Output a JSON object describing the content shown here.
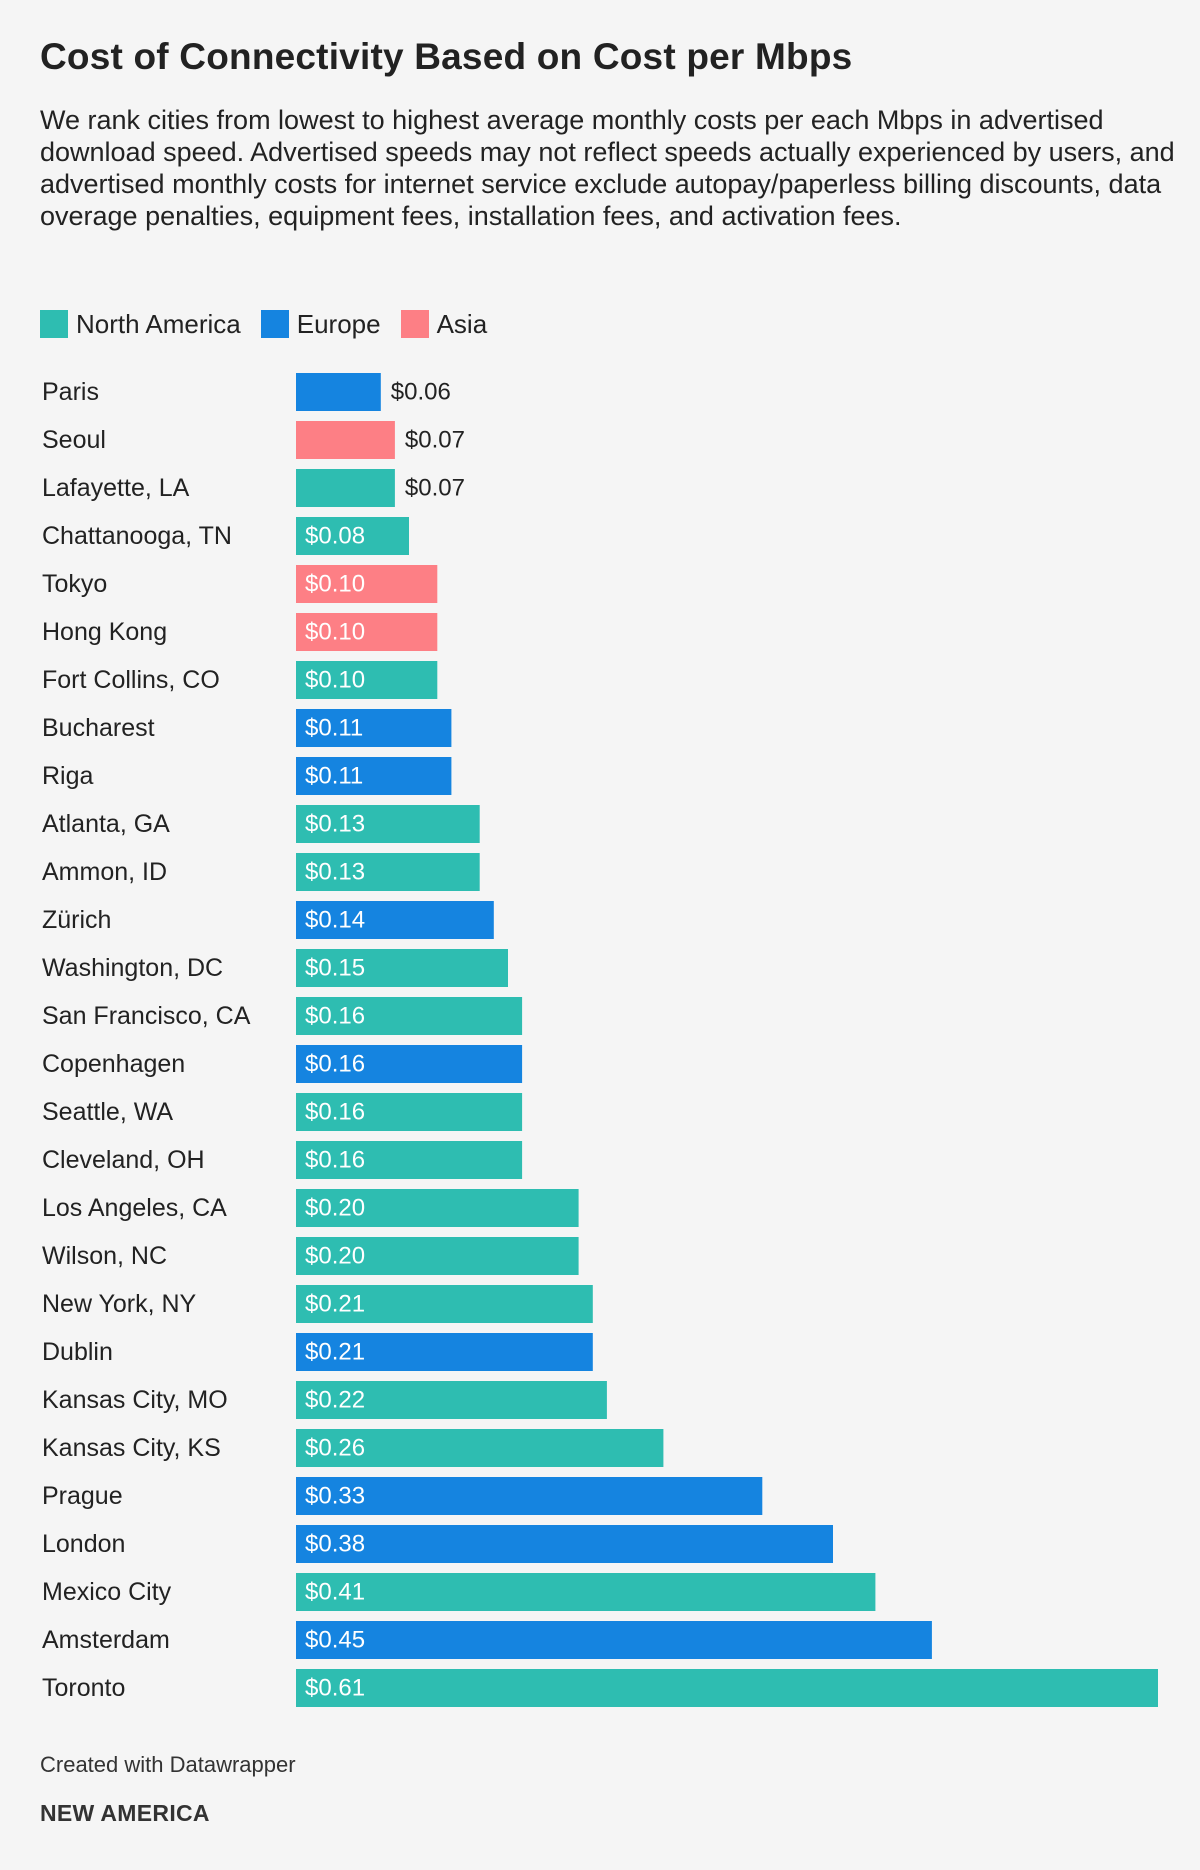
{
  "chart_data": {
    "type": "bar",
    "orientation": "horizontal",
    "title": "Cost of Connectivity Based on Cost per Mbps",
    "subtitle": "We rank cities from lowest to highest average monthly costs per each Mbps in advertised download speed. Advertised speeds may not reflect speeds actually experienced by users, and advertised monthly costs for internet service exclude autopay/paperless billing discounts, data overage penalties, equipment fees, installation fees, and activation fees.",
    "legend": [
      {
        "key": "north_america",
        "label": "North America",
        "color": "#2ebdb1"
      },
      {
        "key": "europe",
        "label": "Europe",
        "color": "#1584e0"
      },
      {
        "key": "asia",
        "label": "Asia",
        "color": "#fd7f85"
      }
    ],
    "legend_position": "top-left",
    "xlim": [
      0,
      0.61
    ],
    "grid": false,
    "value_format": "$",
    "bars": [
      {
        "category": "Paris",
        "value": 0.06,
        "label": "$0.06",
        "region": "europe"
      },
      {
        "category": "Seoul",
        "value": 0.07,
        "label": "$0.07",
        "region": "asia"
      },
      {
        "category": "Lafayette, LA",
        "value": 0.07,
        "label": "$0.07",
        "region": "north_america"
      },
      {
        "category": "Chattanooga, TN",
        "value": 0.08,
        "label": "$0.08",
        "region": "north_america"
      },
      {
        "category": "Tokyo",
        "value": 0.1,
        "label": "$0.10",
        "region": "asia"
      },
      {
        "category": "Hong Kong",
        "value": 0.1,
        "label": "$0.10",
        "region": "asia"
      },
      {
        "category": "Fort Collins, CO",
        "value": 0.1,
        "label": "$0.10",
        "region": "north_america"
      },
      {
        "category": "Bucharest",
        "value": 0.11,
        "label": "$0.11",
        "region": "europe"
      },
      {
        "category": "Riga",
        "value": 0.11,
        "label": "$0.11",
        "region": "europe"
      },
      {
        "category": "Atlanta, GA",
        "value": 0.13,
        "label": "$0.13",
        "region": "north_america"
      },
      {
        "category": "Ammon, ID",
        "value": 0.13,
        "label": "$0.13",
        "region": "north_america"
      },
      {
        "category": "Zürich",
        "value": 0.14,
        "label": "$0.14",
        "region": "europe"
      },
      {
        "category": "Washington, DC",
        "value": 0.15,
        "label": "$0.15",
        "region": "north_america"
      },
      {
        "category": "San Francisco, CA",
        "value": 0.16,
        "label": "$0.16",
        "region": "north_america"
      },
      {
        "category": "Copenhagen",
        "value": 0.16,
        "label": "$0.16",
        "region": "europe"
      },
      {
        "category": "Seattle, WA",
        "value": 0.16,
        "label": "$0.16",
        "region": "north_america"
      },
      {
        "category": "Cleveland, OH",
        "value": 0.16,
        "label": "$0.16",
        "region": "north_america"
      },
      {
        "category": "Los Angeles, CA",
        "value": 0.2,
        "label": "$0.20",
        "region": "north_america"
      },
      {
        "category": "Wilson, NC",
        "value": 0.2,
        "label": "$0.20",
        "region": "north_america"
      },
      {
        "category": "New York, NY",
        "value": 0.21,
        "label": "$0.21",
        "region": "north_america"
      },
      {
        "category": "Dublin",
        "value": 0.21,
        "label": "$0.21",
        "region": "europe"
      },
      {
        "category": "Kansas City, MO",
        "value": 0.22,
        "label": "$0.22",
        "region": "north_america"
      },
      {
        "category": "Kansas City, KS",
        "value": 0.26,
        "label": "$0.26",
        "region": "north_america"
      },
      {
        "category": "Prague",
        "value": 0.33,
        "label": "$0.33",
        "region": "europe"
      },
      {
        "category": "London",
        "value": 0.38,
        "label": "$0.38",
        "region": "europe"
      },
      {
        "category": "Mexico City",
        "value": 0.41,
        "label": "$0.41",
        "region": "north_america"
      },
      {
        "category": "Amsterdam",
        "value": 0.45,
        "label": "$0.45",
        "region": "europe"
      },
      {
        "category": "Toronto",
        "value": 0.61,
        "label": "$0.61",
        "region": "north_america"
      }
    ]
  },
  "footer": {
    "credit": "Created with Datawrapper",
    "organization": "NEW AMERICA"
  }
}
